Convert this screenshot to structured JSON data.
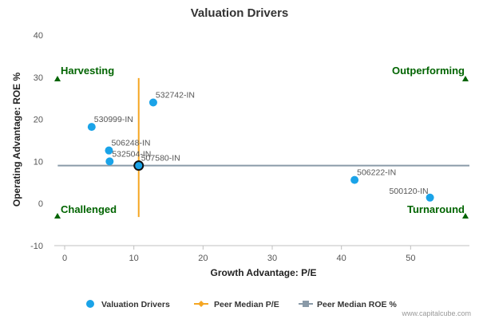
{
  "chart_data": {
    "type": "scatter",
    "title": "Valuation Drivers",
    "xlabel": "Growth Advantage: P/E",
    "ylabel": "Operating Advantage: ROE %",
    "xlim": [
      -1.5,
      58.5
    ],
    "ylim": [
      -10,
      40
    ],
    "xticks": [
      "0",
      "10",
      "20",
      "30",
      "40",
      "50"
    ],
    "yticks": [
      "-10",
      "0",
      "10",
      "20",
      "30",
      "40"
    ],
    "xtick_values": [
      0,
      10,
      20,
      30,
      40,
      50
    ],
    "ytick_values": [
      -10,
      0,
      10,
      20,
      30,
      40
    ],
    "grid": false,
    "legend_position": "bottom",
    "points": [
      {
        "label": "532742-IN",
        "x": 12.8,
        "y": 24.0
      },
      {
        "label": "530999-IN",
        "x": 3.9,
        "y": 18.2
      },
      {
        "label": "506248-IN",
        "x": 6.4,
        "y": 12.6
      },
      {
        "label": "532504-IN",
        "x": 6.5,
        "y": 10.0
      },
      {
        "label": "507580-IN",
        "x": 10.7,
        "y": 9.0,
        "highlight": true
      },
      {
        "label": "506222-IN",
        "x": 41.9,
        "y": 5.6
      },
      {
        "label": "500120-IN",
        "x": 52.8,
        "y": 1.4
      }
    ],
    "peer_median_pe": {
      "x": 10.7,
      "y_range": [
        -3.2,
        29.8
      ]
    },
    "peer_median_roe": {
      "y": 9.0,
      "x_range": [
        -1.0,
        58.5
      ]
    },
    "quadrants": {
      "top_left": "Harvesting",
      "top_right": "Outperforming",
      "bottom_left": "Challenged",
      "bottom_right": "Turnaround"
    },
    "legend": [
      "Valuation Drivers",
      "Peer Median P/E",
      "Peer Median ROE %"
    ],
    "colors": {
      "points": "#1aa3e8",
      "peer_pe": "#f5a623",
      "peer_roe": "#8a9aa8",
      "quadrant_text": "#006400",
      "axis": "#c0c0c0"
    }
  },
  "credit": "www.capitalcube.com"
}
